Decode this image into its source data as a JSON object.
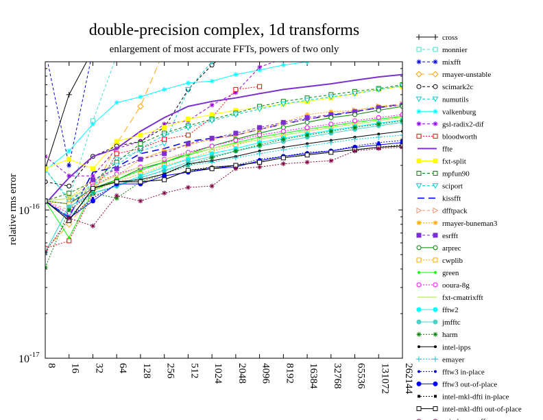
{
  "chart_data": {
    "type": "line",
    "title": "double-precision complex, 1d transforms",
    "subtitle": "enlargement of most accurate FFTs, powers of two only",
    "ylabel": "relative rms error",
    "xlabel": "",
    "x_scale": "log2",
    "y_scale": "log10",
    "ylim": [
      1e-17,
      1e-15
    ],
    "y_ticks": [
      {
        "value": 1e-17,
        "base": "10",
        "exp": "-17"
      },
      {
        "value": 1e-16,
        "base": "10",
        "exp": "-16"
      }
    ],
    "categories": [
      "8",
      "16",
      "32",
      "64",
      "128",
      "256",
      "512",
      "1024",
      "2048",
      "4096",
      "8192",
      "16384",
      "32768",
      "65536",
      "131072",
      "262144"
    ],
    "grid": false,
    "legend_position": "right",
    "series": [
      {
        "name": "cross",
        "color": "#000000",
        "dash": "",
        "marker": "plus",
        "values": [
          1.9e-16,
          6e-16,
          1.2e-15,
          null,
          null,
          null,
          null,
          null,
          null,
          null,
          null,
          null,
          null,
          null,
          null,
          null
        ]
      },
      {
        "name": "monnier",
        "color": "#40e0d0",
        "dash": "4,3",
        "marker": "square-open",
        "values": [
          1.85e-16,
          1.2e-16,
          4e-16,
          1.1e-15,
          null,
          null,
          null,
          null,
          null,
          null,
          null,
          null,
          null,
          null,
          null,
          null
        ]
      },
      {
        "name": "mixfft",
        "color": "#0000cd",
        "dash": "4,3",
        "marker": "star",
        "values": [
          1.2e-15,
          2e-16,
          1.2e-15,
          null,
          null,
          null,
          null,
          null,
          null,
          null,
          null,
          null,
          null,
          null,
          null,
          null
        ]
      },
      {
        "name": "rmayer-unstable",
        "color": "#ffa500",
        "dash": "10,6",
        "marker": "diamond-open",
        "values": [
          5.4e-17,
          8e-17,
          1.3e-16,
          2.8e-16,
          5e-16,
          1.2e-15,
          null,
          null,
          null,
          null,
          null,
          null,
          null,
          null,
          null,
          null
        ]
      },
      {
        "name": "scimark2c",
        "color": "#000000",
        "dash": "4,3",
        "marker": "circle-open",
        "values": [
          1.55e-16,
          1.45e-16,
          2.3e-16,
          2.7e-16,
          2.9e-16,
          3.6e-16,
          6.5e-16,
          9.5e-16,
          1.3e-15,
          null,
          null,
          null,
          null,
          null,
          null,
          null
        ]
      },
      {
        "name": "numutils",
        "color": "#00ced1",
        "dash": "4,3",
        "marker": "triangle-down-open",
        "values": [
          1.9e-16,
          1.15e-16,
          1.5e-16,
          2.2e-16,
          2.5e-16,
          2.8e-16,
          6.5e-16,
          1e-15,
          1.3e-15,
          null,
          null,
          null,
          null,
          null,
          null,
          null
        ]
      },
      {
        "name": "valkenburg",
        "color": "#00ffff",
        "dash": "",
        "marker": "star",
        "values": [
          1.85e-16,
          2.5e-16,
          3.8e-16,
          5.3e-16,
          5.8e-16,
          6.5e-16,
          7.2e-16,
          7.4e-16,
          8.2e-16,
          8.8e-16,
          9.5e-16,
          1e-15,
          null,
          null,
          null,
          null
        ]
      },
      {
        "name": "gsl-radix2-dif",
        "color": "#9400d3",
        "dash": "4,3",
        "marker": "star",
        "values": [
          2.3e-16,
          1.7e-16,
          1.7e-16,
          2.6e-16,
          2.9e-16,
          3.8e-16,
          4e-16,
          5.1e-16,
          6.2e-16,
          9.2e-16,
          1.05e-15,
          1.2e-15,
          null,
          null,
          null,
          null
        ]
      },
      {
        "name": "bloodworth",
        "color": "#ff0000",
        "dash": "2,2",
        "marker": "square-open",
        "values": [
          5.5e-17,
          6.2e-17,
          1.3e-16,
          2.4e-16,
          2.6e-16,
          3e-16,
          3.2e-16,
          4.2e-16,
          6.5e-16,
          6.8e-16,
          null,
          null,
          null,
          null,
          null,
          null
        ]
      },
      {
        "name": "ffte",
        "color": "#7b2fd0",
        "dash": "",
        "marker": "none",
        "values": [
          1.1e-16,
          1.65e-16,
          2.3e-16,
          2.6e-16,
          3.4e-16,
          4.2e-16,
          5e-16,
          5.4e-16,
          5.7e-16,
          6.1e-16,
          6.5e-16,
          6.8e-16,
          7.1e-16,
          7.5e-16,
          7.9e-16,
          8.2e-16
        ]
      },
      {
        "name": "fxt-split",
        "color": "#ffff00",
        "dash": "",
        "marker": "square-filled",
        "values": [
          1.9e-16,
          2.2e-16,
          1.9e-16,
          2.9e-16,
          3.2e-16,
          3.6e-16,
          4.1e-16,
          4.4e-16,
          4.7e-16,
          4.9e-16,
          5.2e-16,
          5.4e-16,
          5.7e-16,
          6.1e-16,
          6.5e-16,
          6.8e-16
        ]
      },
      {
        "name": "mpfun90",
        "color": "#008000",
        "dash": "4,3",
        "marker": "square-open",
        "values": [
          1.15e-16,
          1.3e-16,
          1.55e-16,
          2.1e-16,
          2.8e-16,
          3.3e-16,
          3.7e-16,
          4.1e-16,
          4.5e-16,
          5e-16,
          5.4e-16,
          5.7e-16,
          6e-16,
          6.3e-16,
          6.6e-16,
          7e-16
        ]
      },
      {
        "name": "sciport",
        "color": "#00ced1",
        "dash": "4,3",
        "marker": "triangle-down-open",
        "values": [
          1.15e-16,
          1.1e-16,
          1.45e-16,
          2e-16,
          2.6e-16,
          3.2e-16,
          3.6e-16,
          4e-16,
          4.4e-16,
          4.8e-16,
          5.2e-16,
          5.5e-16,
          5.8e-16,
          6.1e-16,
          6.5e-16,
          6.9e-16
        ]
      },
      {
        "name": "kissfft",
        "color": "#0000ff",
        "dash": "10,6",
        "marker": "none",
        "values": [
          1.15e-16,
          9e-17,
          1.8e-16,
          1.95e-16,
          2.4e-16,
          2.6e-16,
          2.9e-16,
          3.05e-16,
          3.2e-16,
          3.5e-16,
          3.8e-16,
          4.1e-16,
          4.35e-16,
          4.6e-16,
          4.9e-16,
          5.2e-16
        ]
      },
      {
        "name": "dfftpack",
        "color": "#e9967a",
        "dash": "4,3",
        "marker": "triangle-right-open",
        "values": [
          1.15e-16,
          1e-16,
          1.5e-16,
          1.9e-16,
          2.2e-16,
          2.5e-16,
          2.75e-16,
          3e-16,
          3.2e-16,
          3.5e-16,
          3.8e-16,
          4.1e-16,
          4.4e-16,
          4.7e-16,
          5e-16,
          5.2e-16
        ]
      },
      {
        "name": "rmayer-buneman3",
        "color": "#ffa500",
        "dash": "2,2",
        "marker": "star",
        "values": [
          1.15e-16,
          1.2e-16,
          1.6e-16,
          1.7e-16,
          2.2e-16,
          2.5e-16,
          2.75e-16,
          3e-16,
          3.2e-16,
          3.5e-16,
          3.9e-16,
          4.4e-16,
          4.6e-16,
          4.7e-16,
          5e-16,
          5.1e-16
        ]
      },
      {
        "name": "esrfft",
        "color": "#7b2fd0",
        "dash": "4,3",
        "marker": "square-filled",
        "values": [
          1.15e-16,
          1.1e-16,
          1.6e-16,
          1.9e-16,
          2.2e-16,
          2.4e-16,
          2.8e-16,
          3.05e-16,
          3.3e-16,
          3.6e-16,
          3.9e-16,
          4.2e-16,
          4.4e-16,
          4.6e-16,
          4.9e-16,
          5.1e-16
        ]
      },
      {
        "name": "arprec",
        "color": "#008000",
        "dash": "",
        "marker": "circle-open",
        "values": [
          1.15e-16,
          1.1e-16,
          1.4e-16,
          1.6e-16,
          1.9e-16,
          2.1e-16,
          2.4e-16,
          2.7e-16,
          3e-16,
          3.3e-16,
          3.6e-16,
          3.9e-16,
          4.2e-16,
          4.4e-16,
          4.7e-16,
          5e-16
        ]
      },
      {
        "name": "cwplib",
        "color": "#ffa500",
        "dash": "2,2",
        "marker": "square-open",
        "values": [
          1.15e-16,
          1.1e-16,
          1.35e-16,
          1.55e-16,
          1.75e-16,
          2e-16,
          2.2e-16,
          2.5e-16,
          2.75e-16,
          3e-16,
          3.2e-16,
          3.4e-16,
          3.6e-16,
          3.8e-16,
          4e-16,
          4.3e-16
        ]
      },
      {
        "name": "green",
        "color": "#00ff00",
        "dash": "",
        "marker": "dot",
        "values": [
          1.15e-16,
          6.5e-17,
          1.35e-16,
          1.6e-16,
          1.85e-16,
          2.1e-16,
          2.35e-16,
          2.6e-16,
          2.85e-16,
          3.1e-16,
          3.3e-16,
          3.5e-16,
          3.7e-16,
          3.9e-16,
          4.1e-16,
          4.3e-16
        ]
      },
      {
        "name": "ooura-8g",
        "color": "#ff00ff",
        "dash": "2,2",
        "marker": "circle-open",
        "values": [
          1.15e-16,
          9.5e-17,
          1.45e-16,
          1.75e-16,
          1.95e-16,
          2.2e-16,
          2.45e-16,
          2.7e-16,
          2.95e-16,
          3.2e-16,
          3.4e-16,
          3.6e-16,
          3.8e-16,
          4e-16,
          4.2e-16,
          4.4e-16
        ]
      },
      {
        "name": "fxt-cmatrixfft",
        "color": "#c8f080",
        "dash": "",
        "marker": "none",
        "values": [
          1.15e-16,
          1.2e-16,
          1.45e-16,
          1.7e-16,
          1.95e-16,
          2.2e-16,
          2.4e-16,
          2.6e-16,
          2.8e-16,
          3e-16,
          3.2e-16,
          3.4e-16,
          3.6e-16,
          3.8e-16,
          4e-16,
          4.2e-16
        ]
      },
      {
        "name": "fftw2",
        "color": "#00ffff",
        "dash": "",
        "marker": "dot-large",
        "values": [
          5.2e-17,
          1.05e-16,
          1.3e-16,
          1.45e-16,
          1.7e-16,
          1.95e-16,
          2.2e-16,
          2.4e-16,
          2.6e-16,
          2.85e-16,
          3.05e-16,
          3.25e-16,
          3.45e-16,
          3.65e-16,
          3.85e-16,
          4.05e-16
        ]
      },
      {
        "name": "jmfftc",
        "color": "#48d1cc",
        "dash": "",
        "marker": "dot-large",
        "values": [
          5.2e-17,
          1.05e-16,
          1.3e-16,
          1.45e-16,
          1.65e-16,
          1.85e-16,
          2.1e-16,
          2.3e-16,
          2.5e-16,
          2.7e-16,
          2.9e-16,
          3.1e-16,
          3.3e-16,
          3.5e-16,
          3.7e-16,
          3.9e-16
        ]
      },
      {
        "name": "harm",
        "color": "#008000",
        "dash": "2,2",
        "marker": "star",
        "values": [
          4.1e-17,
          1e-16,
          1.3e-16,
          1.2e-16,
          1.55e-16,
          1.75e-16,
          2e-16,
          2.25e-16,
          2.5e-16,
          2.75e-16,
          3e-16,
          3.2e-16,
          3.4e-16,
          3.6e-16,
          3.8e-16,
          4e-16
        ]
      },
      {
        "name": "intel-ipps",
        "color": "#000000",
        "dash": "",
        "marker": "dot",
        "values": [
          1.15e-16,
          8.5e-17,
          1.4e-16,
          1.55e-16,
          1.6e-16,
          1.75e-16,
          2.05e-16,
          2.15e-16,
          2.3e-16,
          2.5e-16,
          2.65e-16,
          2.8e-16,
          2.95e-16,
          3.1e-16,
          3.25e-16,
          3.4e-16
        ]
      },
      {
        "name": "emayer",
        "color": "#00ced1",
        "dash": "2,2",
        "marker": "plus",
        "values": [
          1.15e-16,
          9e-17,
          1.3e-16,
          1.45e-16,
          1.65e-16,
          1.85e-16,
          2e-16,
          2.1e-16,
          2.25e-16,
          2.4e-16,
          2.55e-16,
          2.7e-16,
          2.85e-16,
          3e-16,
          3.1e-16,
          3.2e-16
        ]
      },
      {
        "name": "fftw3 in-place",
        "color": "#0000cd",
        "dash": "2,2",
        "marker": "dot",
        "values": [
          1.15e-16,
          8.8e-17,
          1.2e-16,
          1.5e-16,
          1.5e-16,
          1.7e-16,
          1.8e-16,
          1.95e-16,
          2e-16,
          2.2e-16,
          2.3e-16,
          2.45e-16,
          2.5e-16,
          2.7e-16,
          2.85e-16,
          2.95e-16
        ]
      },
      {
        "name": "fftw3 out-of-place",
        "color": "#0000ff",
        "dash": "",
        "marker": "dot-large",
        "values": [
          1.15e-16,
          8.8e-17,
          1.15e-16,
          1.5e-16,
          1.5e-16,
          1.7e-16,
          1.8e-16,
          1.9e-16,
          1.95e-16,
          2.15e-16,
          2.3e-16,
          2.4e-16,
          2.5e-16,
          2.65e-16,
          2.75e-16,
          2.85e-16
        ]
      },
      {
        "name": "intel-mkl-dfti in-place",
        "color": "#000000",
        "dash": "2,2",
        "marker": "square-filled-small",
        "values": [
          1.15e-16,
          8.5e-17,
          1.4e-16,
          1.55e-16,
          1.55e-16,
          1.6e-16,
          1.85e-16,
          1.95e-16,
          2e-16,
          2.1e-16,
          2.25e-16,
          2.35e-16,
          2.45e-16,
          2.55e-16,
          2.65e-16,
          2.75e-16
        ]
      },
      {
        "name": "intel-mkl-dfti out-of-place",
        "color": "#000000",
        "dash": "",
        "marker": "square-open",
        "values": [
          1.15e-16,
          8.5e-17,
          1.4e-16,
          1.55e-16,
          1.55e-16,
          1.6e-16,
          1.85e-16,
          1.9e-16,
          2e-16,
          2.1e-16,
          2.25e-16,
          2.35e-16,
          2.45e-16,
          2.55e-16,
          2.65e-16,
          2.7e-16
        ]
      },
      {
        "name": "spiral-egner-fft",
        "color": "#800040",
        "dash": "2,2",
        "marker": "star",
        "values": [
          5.2e-17,
          8.8e-17,
          7.8e-17,
          1.25e-16,
          1.15e-16,
          1.3e-16,
          1.42e-16,
          1.45e-16,
          1.9e-16,
          1.95e-16,
          2.05e-16,
          2.1e-16,
          2.15e-16,
          2.5e-16,
          2.6e-16,
          2.65e-16
        ]
      }
    ]
  }
}
